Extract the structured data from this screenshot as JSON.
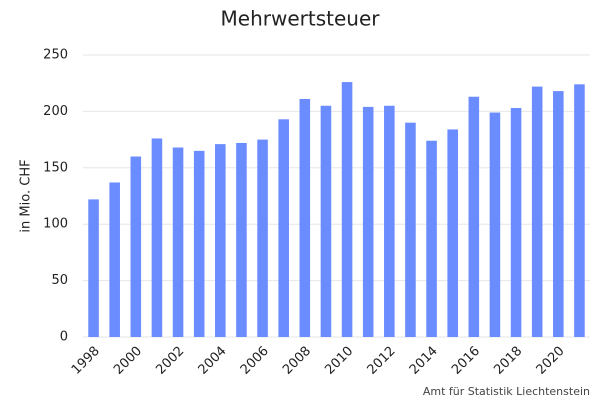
{
  "chart_data": {
    "type": "bar",
    "title": "Mehrwertsteuer",
    "y_label": "in Mio. CHF",
    "source": "Amt für Statistik Liechtenstein",
    "categories": [
      "1998",
      null,
      "2000",
      null,
      "2002",
      null,
      "2004",
      null,
      "2006",
      null,
      "2008",
      null,
      "2010",
      null,
      "2012",
      null,
      "2014",
      null,
      "2016",
      null,
      "2018",
      null,
      "2020",
      null
    ],
    "values": [
      122,
      137,
      160,
      176,
      168,
      165,
      171,
      172,
      175,
      193,
      211,
      205,
      226,
      204,
      205,
      190,
      174,
      184,
      213,
      199,
      203,
      222,
      218,
      224
    ],
    "color": "#6b8cff",
    "ylim": [
      0,
      250
    ],
    "yticks": [
      0,
      50,
      100,
      150,
      200,
      250
    ],
    "grid": true
  }
}
